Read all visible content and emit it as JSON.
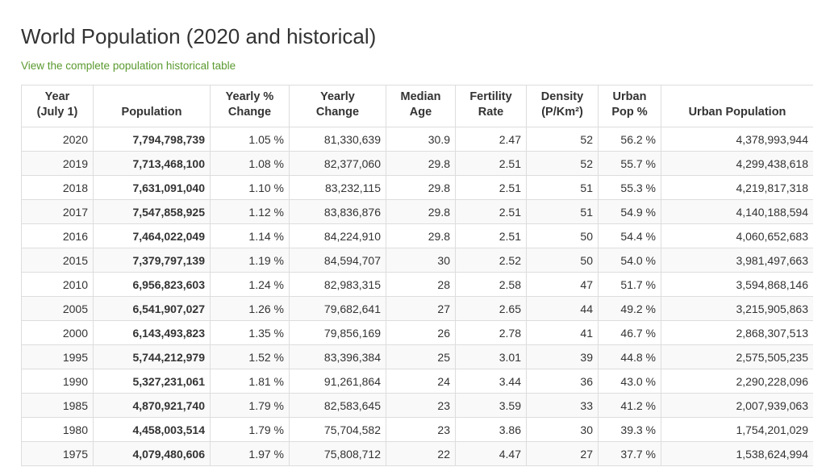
{
  "page": {
    "title": "World Population (2020 and historical)",
    "link_text": "View the complete population historical table"
  },
  "table": {
    "headers": [
      "Year\n(July 1)",
      "Population",
      "Yearly %\nChange",
      "Yearly\nChange",
      "Median\nAge",
      "Fertility\nRate",
      "Density\n(P/Km²)",
      "Urban\nPop %",
      "Urban Population"
    ],
    "rows": [
      [
        "2020",
        "7,794,798,739",
        "1.05 %",
        "81,330,639",
        "30.9",
        "2.47",
        "52",
        "56.2 %",
        "4,378,993,944"
      ],
      [
        "2019",
        "7,713,468,100",
        "1.08 %",
        "82,377,060",
        "29.8",
        "2.51",
        "52",
        "55.7 %",
        "4,299,438,618"
      ],
      [
        "2018",
        "7,631,091,040",
        "1.10 %",
        "83,232,115",
        "29.8",
        "2.51",
        "51",
        "55.3 %",
        "4,219,817,318"
      ],
      [
        "2017",
        "7,547,858,925",
        "1.12 %",
        "83,836,876",
        "29.8",
        "2.51",
        "51",
        "54.9 %",
        "4,140,188,594"
      ],
      [
        "2016",
        "7,464,022,049",
        "1.14 %",
        "84,224,910",
        "29.8",
        "2.51",
        "50",
        "54.4 %",
        "4,060,652,683"
      ],
      [
        "2015",
        "7,379,797,139",
        "1.19 %",
        "84,594,707",
        "30",
        "2.52",
        "50",
        "54.0 %",
        "3,981,497,663"
      ],
      [
        "2010",
        "6,956,823,603",
        "1.24 %",
        "82,983,315",
        "28",
        "2.58",
        "47",
        "51.7 %",
        "3,594,868,146"
      ],
      [
        "2005",
        "6,541,907,027",
        "1.26 %",
        "79,682,641",
        "27",
        "2.65",
        "44",
        "49.2 %",
        "3,215,905,863"
      ],
      [
        "2000",
        "6,143,493,823",
        "1.35 %",
        "79,856,169",
        "26",
        "2.78",
        "41",
        "46.7 %",
        "2,868,307,513"
      ],
      [
        "1995",
        "5,744,212,979",
        "1.52 %",
        "83,396,384",
        "25",
        "3.01",
        "39",
        "44.8 %",
        "2,575,505,235"
      ],
      [
        "1990",
        "5,327,231,061",
        "1.81 %",
        "91,261,864",
        "24",
        "3.44",
        "36",
        "43.0 %",
        "2,290,228,096"
      ],
      [
        "1985",
        "4,870,921,740",
        "1.79 %",
        "82,583,645",
        "23",
        "3.59",
        "33",
        "41.2 %",
        "2,007,939,063"
      ],
      [
        "1980",
        "4,458,003,514",
        "1.79 %",
        "75,704,582",
        "23",
        "3.86",
        "30",
        "39.3 %",
        "1,754,201,029"
      ],
      [
        "1975",
        "4,079,480,606",
        "1.97 %",
        "75,808,712",
        "22",
        "4.47",
        "27",
        "37.7 %",
        "1,538,624,994"
      ]
    ]
  },
  "colors": {
    "link": "#5a9a2f",
    "border": "#dddddd",
    "stripe": "#f9f9f9"
  }
}
